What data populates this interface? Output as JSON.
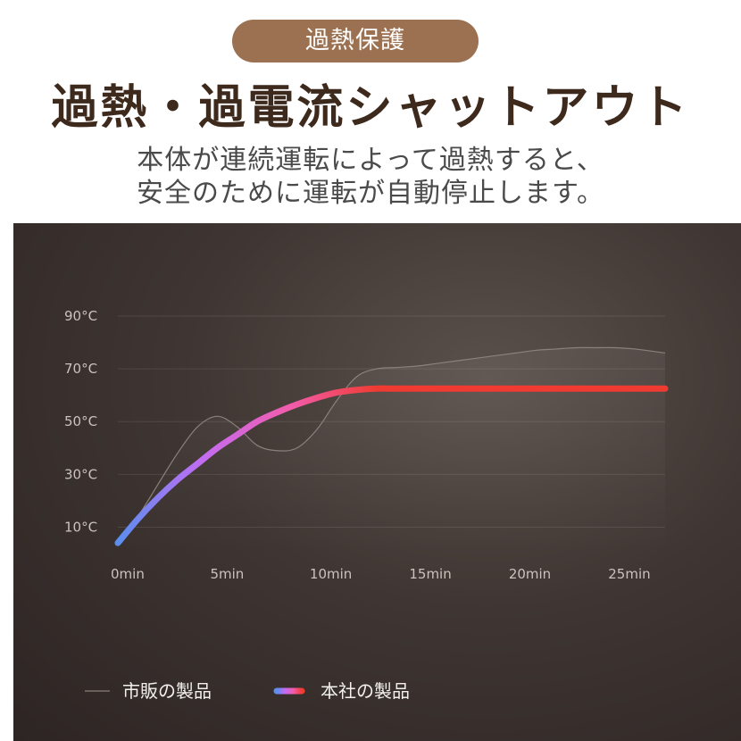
{
  "header": {
    "badge": "過熱保護",
    "headline": "過熱・過電流シャットアウト",
    "subtitle_line1": "本体が連続運転によって過熱すると、",
    "subtitle_line2": "安全のために運転が自動停止します。"
  },
  "colors": {
    "badge": "#9b7152",
    "headline": "#3d2a1c",
    "panel": "#3f3633",
    "series_gradient": [
      "#5b8ef0",
      "#c46cf2",
      "#f25cab",
      "#f03b33"
    ],
    "competitor_line": "#8a817c"
  },
  "chart_data": {
    "type": "line",
    "x_unit": "min",
    "x_ticks": [
      "0min",
      "5min",
      "10min",
      "15min",
      "20min",
      "25min"
    ],
    "y_ticks": [
      "10°C",
      "30°C",
      "50°C",
      "70°C",
      "90°C"
    ],
    "y_tick_values": [
      10,
      30,
      50,
      70,
      90
    ],
    "x_range": [
      0,
      27.5
    ],
    "y_range": [
      0,
      90
    ],
    "grid": true,
    "legend_position": "bottom-left",
    "series": [
      {
        "name": "市販の製品",
        "style": "thin-gray",
        "x": [
          0,
          1,
          2,
          3,
          4,
          5,
          6,
          7,
          8,
          9,
          10,
          11,
          12,
          13,
          14,
          15,
          16,
          17,
          18,
          19,
          20,
          21,
          22,
          23,
          24,
          25,
          26,
          27.5
        ],
        "y": [
          5,
          14,
          26,
          38,
          48,
          52,
          48,
          41,
          39,
          40,
          47,
          58,
          67,
          70,
          70.5,
          71,
          72,
          73,
          74,
          75,
          76,
          77,
          77.5,
          78,
          78,
          78,
          77.5,
          76
        ]
      },
      {
        "name": "本社の製品",
        "style": "thick-gradient",
        "x": [
          0,
          1,
          2,
          3,
          4,
          5,
          6,
          7,
          8,
          9,
          10,
          11,
          12,
          13,
          14,
          15,
          16,
          17,
          18,
          19,
          20,
          21,
          22,
          23,
          24,
          25,
          26,
          27.5
        ],
        "y": [
          4,
          13,
          21,
          28,
          34,
          40,
          45,
          50,
          53.5,
          56.5,
          59,
          61,
          62,
          62.5,
          62.5,
          62.5,
          62.5,
          62.5,
          62.5,
          62.5,
          62.5,
          62.5,
          62.5,
          62.5,
          62.5,
          62.5,
          62.5,
          62.5
        ]
      }
    ]
  }
}
